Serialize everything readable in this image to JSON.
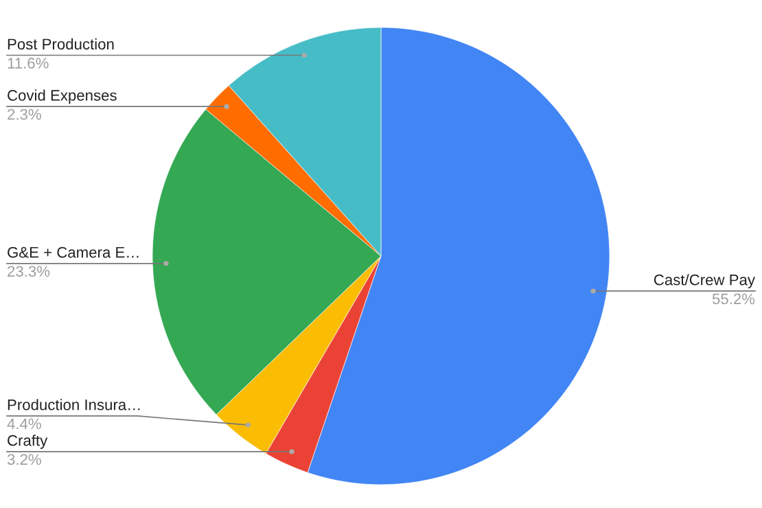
{
  "chart_data": {
    "type": "pie",
    "categories": [
      "Cast/Crew Pay",
      "Crafty",
      "Production Insura…",
      "G&E + Camera E…",
      "Covid Expenses",
      "Post Production"
    ],
    "values": [
      55.2,
      3.2,
      4.4,
      23.3,
      2.3,
      11.6
    ],
    "value_labels": [
      "55.2%",
      "3.2%",
      "4.4%",
      "23.3%",
      "2.3%",
      "11.6%"
    ],
    "colors": [
      "#4285f4",
      "#ea4335",
      "#fbbc04",
      "#34a853",
      "#ff6d01",
      "#46bdc6"
    ]
  }
}
